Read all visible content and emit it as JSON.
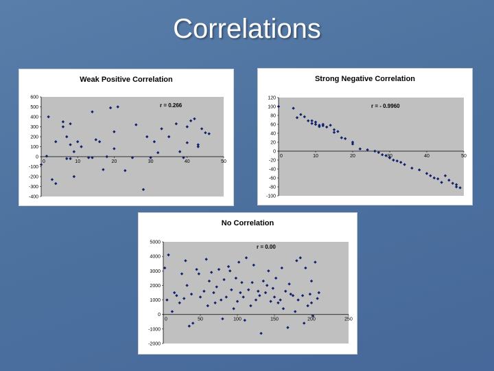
{
  "slide": {
    "title": "Correlations"
  },
  "colors": {
    "marker": "#10206b",
    "plot_area": "#c0c0c0",
    "background": "#4f74a2"
  },
  "chart_data": [
    {
      "type": "scatter",
      "title": "Weak Positive Correlation",
      "annotation": "r = 0.266",
      "xlim": [
        0,
        50
      ],
      "ylim": [
        -400,
        600
      ],
      "xticks": [
        "0",
        "10",
        "20",
        "30",
        "40",
        "50"
      ],
      "yticks": [
        "600",
        "500",
        "400",
        "300",
        "200",
        "100",
        "0",
        "-100",
        "-200",
        "-300",
        "-400"
      ],
      "grid": false,
      "points": [
        [
          0,
          -80
        ],
        [
          1.5,
          5
        ],
        [
          2,
          400
        ],
        [
          3,
          -230
        ],
        [
          4,
          150
        ],
        [
          4,
          -270
        ],
        [
          6,
          300
        ],
        [
          6,
          350
        ],
        [
          7,
          -20
        ],
        [
          7,
          200
        ],
        [
          8,
          -20
        ],
        [
          8,
          120
        ],
        [
          8,
          330
        ],
        [
          9,
          50
        ],
        [
          9,
          -200
        ],
        [
          10,
          150
        ],
        [
          11,
          100
        ],
        [
          13,
          -10
        ],
        [
          14,
          -10
        ],
        [
          14,
          450
        ],
        [
          15,
          170
        ],
        [
          16,
          150
        ],
        [
          17,
          -130
        ],
        [
          18,
          0
        ],
        [
          19,
          490
        ],
        [
          20,
          80
        ],
        [
          20,
          250
        ],
        [
          21,
          500
        ],
        [
          23,
          -140
        ],
        [
          25,
          -10
        ],
        [
          26,
          320
        ],
        [
          28,
          -330
        ],
        [
          29,
          200
        ],
        [
          30,
          -10
        ],
        [
          31,
          150
        ],
        [
          32,
          40
        ],
        [
          33,
          280
        ],
        [
          35,
          200
        ],
        [
          37,
          330
        ],
        [
          38,
          50
        ],
        [
          39,
          -10
        ],
        [
          40,
          300
        ],
        [
          40,
          140
        ],
        [
          41,
          360
        ],
        [
          42,
          380
        ],
        [
          43,
          120
        ],
        [
          43,
          100
        ],
        [
          44,
          280
        ],
        [
          45,
          240
        ],
        [
          46,
          230
        ]
      ]
    },
    {
      "type": "scatter",
      "title": "Strong Negative Correlation",
      "annotation": "r = - 0.9960",
      "xlim": [
        0,
        50
      ],
      "ylim": [
        -100,
        120
      ],
      "xticks": [
        "0",
        "10",
        "20",
        "30",
        "40",
        "50"
      ],
      "yticks": [
        "120",
        "100",
        "80",
        "60",
        "40",
        "20",
        "0",
        "-20",
        "-40",
        "-60",
        "-80",
        "-100"
      ],
      "grid": false,
      "points": [
        [
          0,
          100
        ],
        [
          4,
          96
        ],
        [
          5,
          75
        ],
        [
          6,
          82
        ],
        [
          7,
          77
        ],
        [
          8,
          68
        ],
        [
          9,
          62
        ],
        [
          9,
          68
        ],
        [
          10,
          65
        ],
        [
          10,
          60
        ],
        [
          11,
          58
        ],
        [
          11,
          55
        ],
        [
          12,
          60
        ],
        [
          12,
          57
        ],
        [
          13,
          54
        ],
        [
          14,
          58
        ],
        [
          15,
          48
        ],
        [
          15,
          42
        ],
        [
          16,
          44
        ],
        [
          17,
          30
        ],
        [
          18,
          28
        ],
        [
          20,
          20
        ],
        [
          20,
          16
        ],
        [
          22,
          5
        ],
        [
          24,
          3
        ],
        [
          26,
          0
        ],
        [
          27,
          -3
        ],
        [
          28,
          -8
        ],
        [
          29,
          -10
        ],
        [
          30,
          -15
        ],
        [
          31,
          -20
        ],
        [
          32,
          -22
        ],
        [
          33,
          -25
        ],
        [
          34,
          -30
        ],
        [
          36,
          -38
        ],
        [
          38,
          -42
        ],
        [
          40,
          -50
        ],
        [
          41,
          -55
        ],
        [
          42,
          -60
        ],
        [
          43,
          -62
        ],
        [
          44,
          -70
        ],
        [
          45,
          -55
        ],
        [
          46,
          -65
        ],
        [
          47,
          -72
        ],
        [
          48,
          -75
        ],
        [
          48,
          -80
        ],
        [
          49,
          -82
        ]
      ]
    },
    {
      "type": "scatter",
      "title": "No Correlation",
      "annotation": "r = 0.00",
      "xlim": [
        0,
        250
      ],
      "ylim": [
        -2000,
        5000
      ],
      "xticks": [
        "0",
        "50",
        "100",
        "150",
        "200",
        "250"
      ],
      "yticks": [
        "5000",
        "4000",
        "3000",
        "2000",
        "1000",
        "0",
        "-1000",
        "-2000"
      ],
      "grid": false,
      "points": [
        [
          2,
          3200
        ],
        [
          5,
          1000
        ],
        [
          7,
          4100
        ],
        [
          12,
          200
        ],
        [
          15,
          1500
        ],
        [
          18,
          1300
        ],
        [
          22,
          800
        ],
        [
          25,
          2800
        ],
        [
          28,
          1100
        ],
        [
          30,
          3700
        ],
        [
          32,
          2000
        ],
        [
          35,
          -800
        ],
        [
          38,
          1400
        ],
        [
          40,
          -600
        ],
        [
          45,
          3100
        ],
        [
          48,
          2800
        ],
        [
          50,
          1200
        ],
        [
          55,
          1600
        ],
        [
          58,
          3800
        ],
        [
          60,
          600
        ],
        [
          62,
          2300
        ],
        [
          65,
          2900
        ],
        [
          68,
          1500
        ],
        [
          70,
          800
        ],
        [
          72,
          1900
        ],
        [
          75,
          3100
        ],
        [
          78,
          1000
        ],
        [
          80,
          -300
        ],
        [
          82,
          2400
        ],
        [
          85,
          1200
        ],
        [
          88,
          3300
        ],
        [
          90,
          3000
        ],
        [
          92,
          1700
        ],
        [
          95,
          400
        ],
        [
          98,
          2500
        ],
        [
          100,
          900
        ],
        [
          102,
          3600
        ],
        [
          104,
          1500
        ],
        [
          106,
          2200
        ],
        [
          108,
          1200
        ],
        [
          110,
          -400
        ],
        [
          112,
          3900
        ],
        [
          115,
          1700
        ],
        [
          118,
          600
        ],
        [
          120,
          2200
        ],
        [
          122,
          3400
        ],
        [
          125,
          1000
        ],
        [
          128,
          1600
        ],
        [
          130,
          1300
        ],
        [
          132,
          -1300
        ],
        [
          135,
          2300
        ],
        [
          138,
          1500
        ],
        [
          140,
          2000
        ],
        [
          142,
          3000
        ],
        [
          145,
          900
        ],
        [
          148,
          1800
        ],
        [
          150,
          1200
        ],
        [
          152,
          2500
        ],
        [
          155,
          800
        ],
        [
          158,
          1000
        ],
        [
          160,
          3200
        ],
        [
          162,
          400
        ],
        [
          165,
          1600
        ],
        [
          168,
          -900
        ],
        [
          170,
          2100
        ],
        [
          172,
          1400
        ],
        [
          175,
          1300
        ],
        [
          178,
          200
        ],
        [
          180,
          3700
        ],
        [
          182,
          1000
        ],
        [
          185,
          3900
        ],
        [
          188,
          1300
        ],
        [
          190,
          -600
        ],
        [
          192,
          3200
        ],
        [
          195,
          600
        ],
        [
          198,
          1400
        ],
        [
          200,
          2300
        ],
        [
          200,
          800
        ],
        [
          202,
          -100
        ],
        [
          205,
          3600
        ],
        [
          208,
          1100
        ],
        [
          210,
          1500
        ]
      ]
    }
  ]
}
